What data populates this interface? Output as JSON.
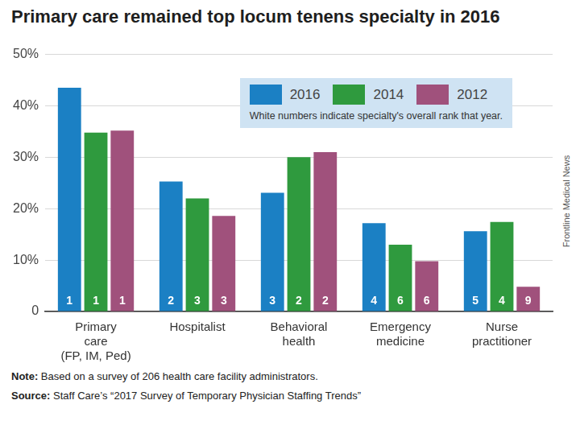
{
  "chart_data": {
    "type": "bar",
    "title": "Primary care remained top locum tenens specialty in 2016",
    "categories": [
      [
        "Primary",
        "care",
        "(FP, IM, Ped)"
      ],
      [
        "Hospitalist"
      ],
      [
        "Behavioral",
        "health"
      ],
      [
        "Emergency",
        "medicine"
      ],
      [
        "Nurse",
        "practitioner"
      ]
    ],
    "series": [
      {
        "name": "2016",
        "color": "#1b80c4",
        "values": [
          43.5,
          25.3,
          23.1,
          17.2,
          15.6
        ],
        "ranks": [
          1,
          2,
          3,
          4,
          5
        ]
      },
      {
        "name": "2014",
        "color": "#2f9a3e",
        "values": [
          34.8,
          22.0,
          30.0,
          13.0,
          17.4
        ],
        "ranks": [
          1,
          3,
          2,
          6,
          4
        ]
      },
      {
        "name": "2012",
        "color": "#a0517c",
        "values": [
          35.2,
          18.6,
          31.0,
          9.8,
          4.8
        ],
        "ranks": [
          1,
          3,
          2,
          6,
          9
        ]
      }
    ],
    "legend_note": "White numbers indicate specialty's overall rank that year.",
    "ylim": [
      0,
      50
    ],
    "yticks": [
      0,
      {
        "value": 10,
        "label": "10%"
      },
      {
        "value": 20,
        "label": "20%"
      },
      {
        "value": 30,
        "label": "30%"
      },
      {
        "value": 40,
        "label": "40%"
      },
      {
        "value": 50,
        "label": "50%"
      }
    ],
    "grid": true,
    "legend": "upper right",
    "note": "Note: Based on a survey of 206 health care facility administrators.",
    "source": "Source: Staff Care’s “2017 Survey of Temporary Physician Staffing Trends”",
    "credit": "Frontline Medical News"
  }
}
